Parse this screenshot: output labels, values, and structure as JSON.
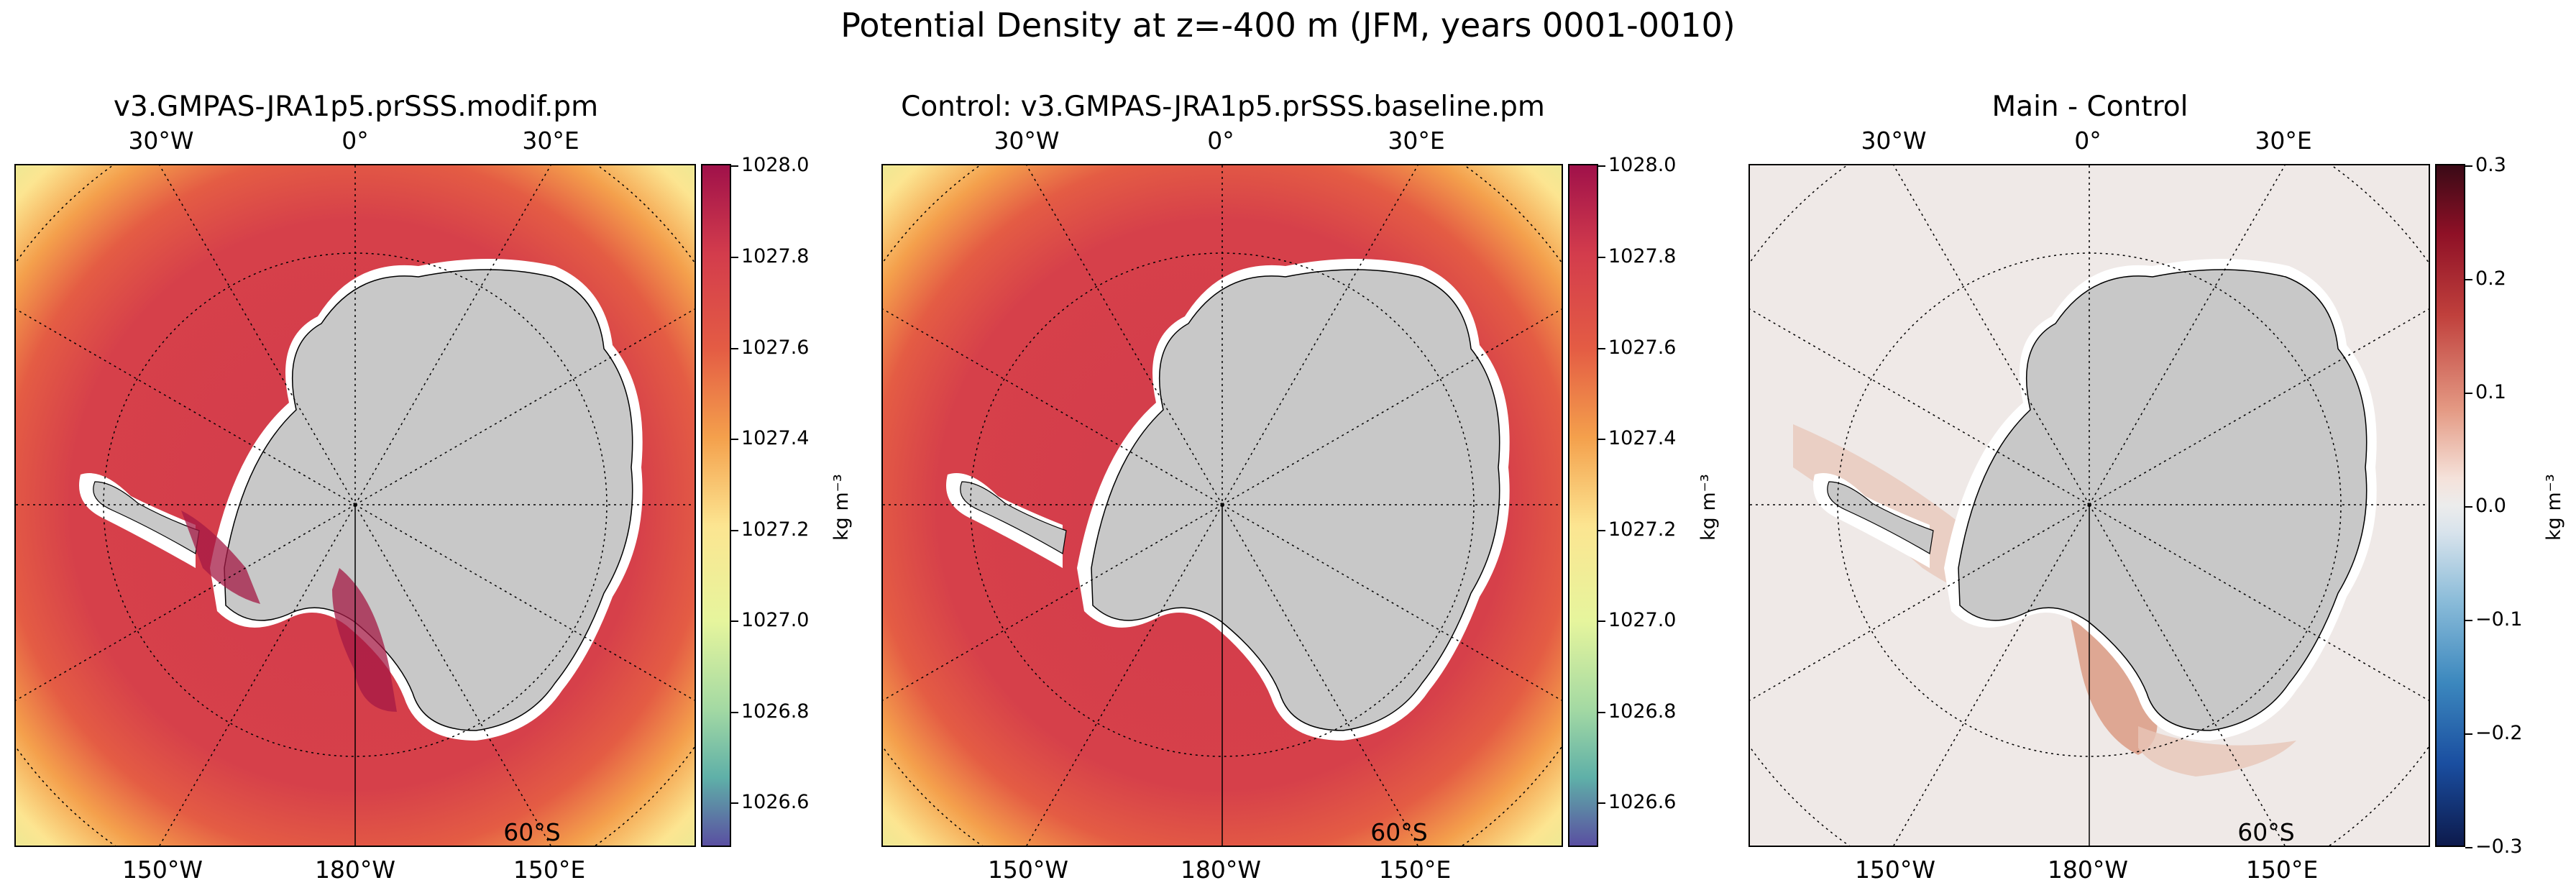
{
  "figure": {
    "suptitle": "Potential Density at z=-400 m (JFM, years 0001-0010)"
  },
  "panels": [
    {
      "title": "v3.GMPAS-JRA1p5.prSSS.modif.pm",
      "top_ticks": [
        "30°W",
        "0°",
        "30°E"
      ],
      "bottom_ticks": [
        "150°W",
        "180°W",
        "150°E"
      ],
      "lat_label": "60°S",
      "colormap": "Spectral_r",
      "colorbar": {
        "label": "kg m⁻³",
        "range": [
          1026.5,
          1028.0
        ],
        "ticks": [
          "1028.0",
          "1027.8",
          "1027.6",
          "1027.4",
          "1027.2",
          "1027.0",
          "1026.8",
          "1026.6"
        ]
      }
    },
    {
      "title": "Control: v3.GMPAS-JRA1p5.prSSS.baseline.pm",
      "top_ticks": [
        "30°W",
        "0°",
        "30°E"
      ],
      "bottom_ticks": [
        "150°W",
        "180°W",
        "150°E"
      ],
      "lat_label": "60°S",
      "colormap": "Spectral_r",
      "colorbar": {
        "label": "kg m⁻³",
        "range": [
          1026.5,
          1028.0
        ],
        "ticks": [
          "1028.0",
          "1027.8",
          "1027.6",
          "1027.4",
          "1027.2",
          "1027.0",
          "1026.8",
          "1026.6"
        ]
      }
    },
    {
      "title": "Main - Control",
      "top_ticks": [
        "30°W",
        "0°",
        "30°E"
      ],
      "bottom_ticks": [
        "150°W",
        "180°W",
        "150°E"
      ],
      "lat_label": "60°S",
      "colormap": "RdBu_r",
      "colorbar": {
        "label": "kg m⁻³",
        "range": [
          -0.3,
          0.3
        ],
        "ticks": [
          "0.3",
          "0.2",
          "0.1",
          "0.0",
          "−0.1",
          "−0.2",
          "−0.3"
        ]
      }
    }
  ],
  "colors": {
    "land": "#c8c8c8",
    "ocean_dense": "#d33c4c",
    "ocean_mid": "#f4a04c",
    "ocean_light": "#fce591",
    "diff_neutral": "#efe9e7",
    "diff_positive": "#dba08a"
  }
}
